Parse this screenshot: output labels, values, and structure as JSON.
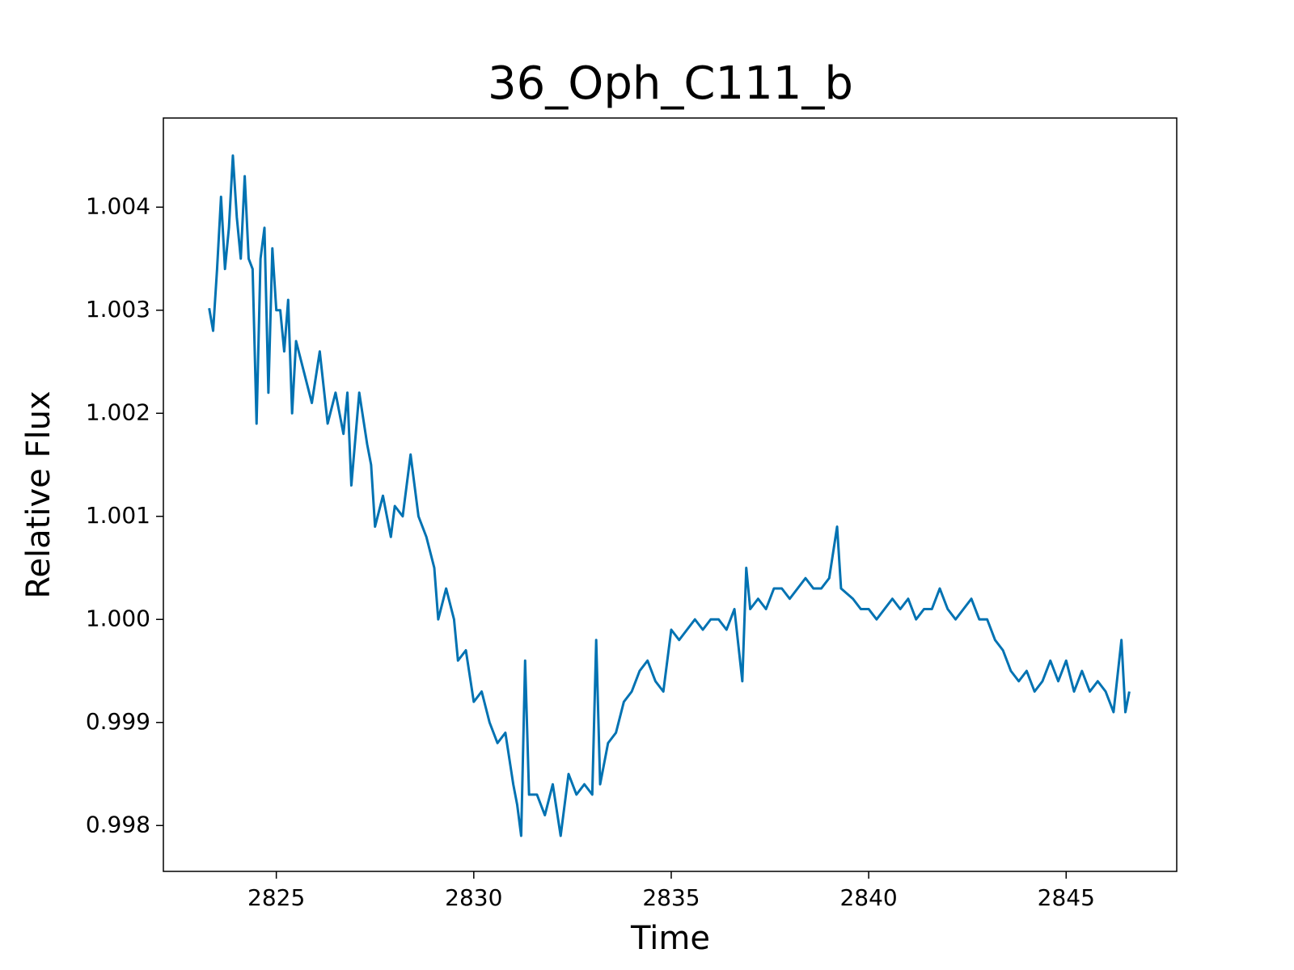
{
  "chart_data": {
    "type": "line",
    "title": "36_Oph_C111_b",
    "xlabel": "Time",
    "ylabel": "Relative Flux",
    "color": "#0072b2",
    "grid": false,
    "xlim": [
      2822.14,
      2847.8
    ],
    "ylim": [
      0.997555,
      1.004865
    ],
    "xticks": [
      2825,
      2830,
      2835,
      2840,
      2845
    ],
    "yticks": [
      0.998,
      0.999,
      {
        "value": 1,
        "label": "1.000"
      },
      1.001,
      1.002,
      1.003,
      1.004
    ],
    "x": [
      2823.3,
      2823.4,
      2823.5,
      2823.6,
      2823.7,
      2823.8,
      2823.9,
      2824.0,
      2824.1,
      2824.2,
      2824.3,
      2824.4,
      2824.5,
      2824.6,
      2824.7,
      2824.8,
      2824.9,
      2825.0,
      2825.1,
      2825.2,
      2825.3,
      2825.4,
      2825.5,
      2825.7,
      2825.9,
      2826.1,
      2826.3,
      2826.5,
      2826.7,
      2826.8,
      2826.9,
      2827.1,
      2827.3,
      2827.4,
      2827.5,
      2827.7,
      2827.9,
      2828.0,
      2828.2,
      2828.4,
      2828.6,
      2828.8,
      2829.0,
      2829.1,
      2829.3,
      2829.5,
      2829.6,
      2829.8,
      2830.0,
      2830.2,
      2830.4,
      2830.6,
      2830.8,
      2831.0,
      2831.1,
      2831.2,
      2831.3,
      2831.4,
      2831.6,
      2831.8,
      2832.0,
      2832.2,
      2832.4,
      2832.6,
      2832.8,
      2833.0,
      2833.1,
      2833.2,
      2833.4,
      2833.6,
      2833.8,
      2834.0,
      2834.2,
      2834.4,
      2834.6,
      2834.8,
      2835.0,
      2835.2,
      2835.4,
      2835.6,
      2835.8,
      2836.0,
      2836.2,
      2836.4,
      2836.6,
      2836.8,
      2836.9,
      2837.0,
      2837.2,
      2837.4,
      2837.6,
      2837.8,
      2838.0,
      2838.2,
      2838.4,
      2838.6,
      2838.8,
      2839.0,
      2839.2,
      2839.3,
      2839.6,
      2839.8,
      2840.0,
      2840.2,
      2840.4,
      2840.6,
      2840.8,
      2841.0,
      2841.2,
      2841.4,
      2841.6,
      2841.8,
      2842.0,
      2842.2,
      2842.4,
      2842.6,
      2842.8,
      2843.0,
      2843.2,
      2843.4,
      2843.6,
      2843.8,
      2844.0,
      2844.2,
      2844.4,
      2844.6,
      2844.8,
      2845.0,
      2845.2,
      2845.4,
      2845.6,
      2845.8,
      2846.0,
      2846.2,
      2846.4,
      2846.5,
      2846.6
    ],
    "values": [
      1.00302,
      1.0028,
      1.0034,
      1.0041,
      1.0034,
      1.0038,
      1.0045,
      1.0039,
      1.0035,
      1.0043,
      1.0035,
      1.0034,
      1.0019,
      1.0035,
      1.0038,
      1.0022,
      1.0036,
      1.003,
      1.003,
      1.0026,
      1.0031,
      1.002,
      1.0027,
      1.0024,
      1.0021,
      1.0026,
      1.0019,
      1.0022,
      1.0018,
      1.0022,
      1.0013,
      1.0022,
      1.0017,
      1.0015,
      1.0009,
      1.0012,
      1.0008,
      1.0011,
      1.001,
      1.0016,
      1.001,
      1.0008,
      1.0005,
      1.0,
      1.0003,
      1.0,
      0.9996,
      0.9997,
      0.9992,
      0.9993,
      0.999,
      0.9988,
      0.9989,
      0.9984,
      0.9982,
      0.9979,
      0.9996,
      0.9983,
      0.9983,
      0.9981,
      0.9984,
      0.9979,
      0.9985,
      0.9983,
      0.9984,
      0.9983,
      0.9998,
      0.9984,
      0.9988,
      0.9989,
      0.9992,
      0.9993,
      0.9995,
      0.9996,
      0.9994,
      0.9993,
      0.9999,
      0.9998,
      0.9999,
      1.0,
      0.9999,
      1.0,
      1.0,
      0.9999,
      1.0001,
      0.9994,
      1.0005,
      1.0001,
      1.0002,
      1.0001,
      1.0003,
      1.0003,
      1.0002,
      1.0003,
      1.0004,
      1.0003,
      1.0003,
      1.0004,
      1.0009,
      1.0003,
      1.0002,
      1.0001,
      1.0001,
      1.0,
      1.0001,
      1.0002,
      1.0001,
      1.0002,
      1.0,
      1.0001,
      1.0001,
      1.0003,
      1.0001,
      1.0,
      1.0001,
      1.0002,
      1.0,
      1.0,
      0.9998,
      0.9997,
      0.9995,
      0.9994,
      0.9995,
      0.9993,
      0.9994,
      0.9996,
      0.9994,
      0.9996,
      0.9993,
      0.9995,
      0.9993,
      0.9994,
      0.9993,
      0.9991,
      0.9998,
      0.9991,
      0.9993
    ]
  }
}
